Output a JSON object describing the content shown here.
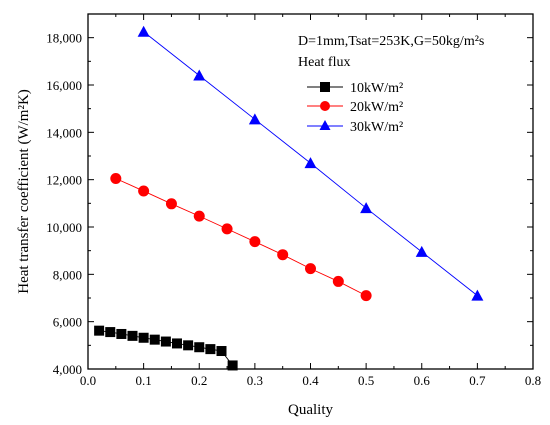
{
  "chart_data": {
    "type": "line",
    "xlabel": "Quality",
    "ylabel": "Heat transfer coefficient (W/m²K)",
    "xlim": [
      0.0,
      0.8
    ],
    "ylim": [
      4000,
      19000
    ],
    "x_ticks": [
      0.0,
      0.1,
      0.2,
      0.3,
      0.4,
      0.5,
      0.6,
      0.7,
      0.8
    ],
    "x_tick_labels": [
      "0.0",
      "0.1",
      "0.2",
      "0.3",
      "0.4",
      "0.5",
      "0.6",
      "0.7",
      "0.8"
    ],
    "y_ticks": [
      4000,
      6000,
      8000,
      10000,
      12000,
      14000,
      16000,
      18000
    ],
    "y_tick_labels": [
      "4,000",
      "6,000",
      "8,000",
      "10,000",
      "12,000",
      "14,000",
      "16,000",
      "18,000"
    ],
    "annotation": "D=1mm,Tsat=253K,G=50kg/m²s",
    "legend_title": "Heat flux",
    "legend_position": "top-right",
    "grid": false,
    "series": [
      {
        "name": "10kW/m²",
        "marker": "square",
        "color": "#000000",
        "x": [
          0.02,
          0.04,
          0.06,
          0.08,
          0.1,
          0.12,
          0.14,
          0.16,
          0.18,
          0.2,
          0.22,
          0.24,
          0.26
        ],
        "y": [
          5620,
          5560,
          5480,
          5400,
          5320,
          5240,
          5160,
          5080,
          5000,
          4920,
          4840,
          4760,
          4150
        ]
      },
      {
        "name": "20kW/m²",
        "marker": "circle",
        "color": "#ff0000",
        "x": [
          0.05,
          0.1,
          0.15,
          0.2,
          0.25,
          0.3,
          0.35,
          0.4,
          0.45,
          0.5
        ],
        "y": [
          12050,
          11520,
          10980,
          10460,
          9920,
          9380,
          8830,
          8240,
          7700,
          7100
        ]
      },
      {
        "name": "30kW/m²",
        "marker": "triangle",
        "color": "#0000ff",
        "x": [
          0.1,
          0.2,
          0.3,
          0.4,
          0.5,
          0.6,
          0.7
        ],
        "y": [
          18250,
          16400,
          14550,
          12700,
          10800,
          8950,
          7100
        ]
      }
    ]
  }
}
